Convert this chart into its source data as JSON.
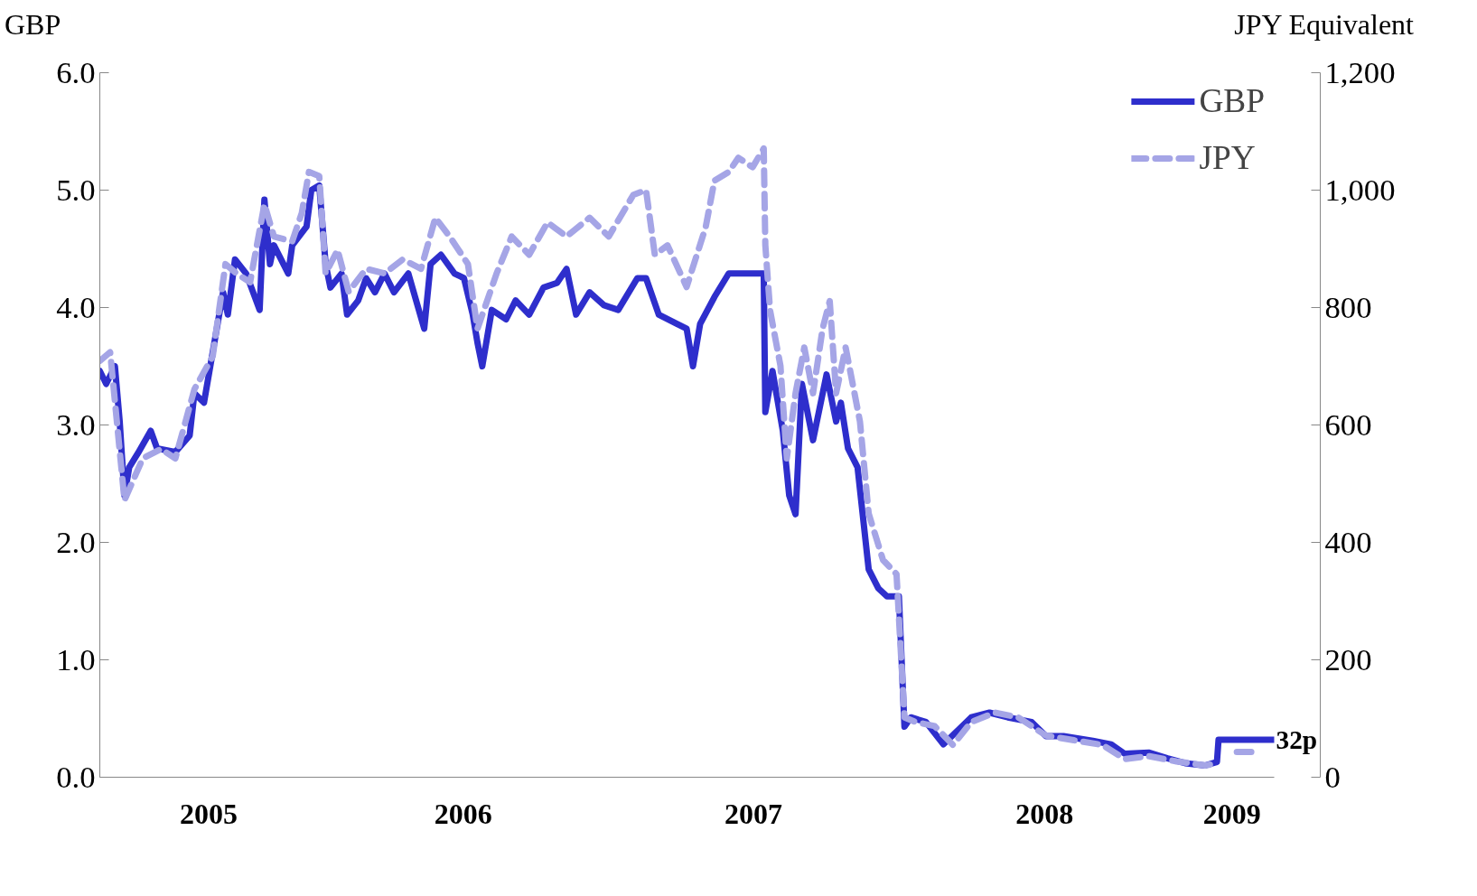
{
  "chart_data": {
    "type": "line",
    "ylabel": "GBP",
    "y2label": "JPY Equivalent",
    "xlim": [
      "2005-04-01",
      "2009-04-17"
    ],
    "xticks": [
      {
        "value": "2005-08-16",
        "label": "2005"
      },
      {
        "value": "2006-07-02",
        "label": "2006"
      },
      {
        "value": "2007-07-02",
        "label": "2007"
      },
      {
        "value": "2008-07-02",
        "label": "2008"
      },
      {
        "value": "2009-02-23",
        "label": "2009"
      }
    ],
    "ylim": [
      0,
      6
    ],
    "yticks": [
      {
        "value": 0,
        "label": "0.0"
      },
      {
        "value": 1,
        "label": "1.0"
      },
      {
        "value": 2,
        "label": "2.0"
      },
      {
        "value": 3,
        "label": "3.0"
      },
      {
        "value": 4,
        "label": "4.0"
      },
      {
        "value": 5,
        "label": "5.0"
      },
      {
        "value": 6,
        "label": "6.0"
      }
    ],
    "y2lim": [
      0,
      1200
    ],
    "y2ticks": [
      0,
      200,
      400,
      600,
      800,
      {
        "value": 1000,
        "label": "1,000"
      },
      {
        "value": 1200,
        "label": "1,200"
      }
    ],
    "grid": false,
    "legend": "top right",
    "annotations": [
      {
        "text": "32p",
        "x": "2009-04-17",
        "y": 0.32
      }
    ],
    "series": [
      {
        "name": "GBP",
        "color": "#2e2ecc",
        "line_style": "solid",
        "x": [
          "2005-04-01",
          "2005-04-09",
          "2005-04-20",
          "2005-04-26",
          "2005-05-02",
          "2005-05-08",
          "2005-05-19",
          "2005-06-04",
          "2005-06-12",
          "2005-07-05",
          "2005-07-23",
          "2005-07-29",
          "2005-08-10",
          "2005-08-21",
          "2005-09-03",
          "2005-09-09",
          "2005-09-18",
          "2005-10-02",
          "2005-10-19",
          "2005-10-25",
          "2005-11-01",
          "2005-11-06",
          "2005-11-24",
          "2005-11-29",
          "2005-12-17",
          "2005-12-23",
          "2006-01-02",
          "2006-01-10",
          "2006-01-16",
          "2006-01-30",
          "2006-02-06",
          "2006-02-20",
          "2006-03-02",
          "2006-03-13",
          "2006-03-25",
          "2006-04-06",
          "2006-04-24",
          "2006-05-14",
          "2006-05-22",
          "2006-06-04",
          "2006-06-21",
          "2006-07-03",
          "2006-07-14",
          "2006-07-20",
          "2006-07-26",
          "2006-08-07",
          "2006-08-25",
          "2006-09-06",
          "2006-09-23",
          "2006-10-11",
          "2006-10-28",
          "2006-11-09",
          "2006-11-21",
          "2006-12-08",
          "2006-12-26",
          "2007-01-13",
          "2007-02-06",
          "2007-02-17",
          "2007-03-05",
          "2007-03-28",
          "2007-04-09",
          "2007-04-17",
          "2007-04-26",
          "2007-05-14",
          "2007-06-01",
          "2007-06-19",
          "2007-07-06",
          "2007-07-15",
          "2007-07-17",
          "2007-07-26",
          "2007-08-08",
          "2007-08-16",
          "2007-08-24",
          "2007-09-01",
          "2007-09-15",
          "2007-10-02",
          "2007-10-14",
          "2007-10-20",
          "2007-10-29",
          "2007-11-10",
          "2007-11-24",
          "2007-12-06",
          "2007-12-17",
          "2008-01-01",
          "2008-01-08",
          "2008-01-16",
          "2008-02-04",
          "2008-02-26",
          "2008-03-20",
          "2008-04-01",
          "2008-04-24",
          "2008-05-17",
          "2008-06-16",
          "2008-07-04",
          "2008-07-26",
          "2008-09-01",
          "2008-09-24",
          "2008-10-11",
          "2008-11-10",
          "2008-12-04",
          "2008-12-26",
          "2009-01-20",
          "2009-02-04",
          "2009-02-06",
          "2009-04-17"
        ],
        "values": [
          3.46,
          3.35,
          3.5,
          3.03,
          2.4,
          2.64,
          2.76,
          2.95,
          2.8,
          2.77,
          2.91,
          3.27,
          3.19,
          3.62,
          4.13,
          3.94,
          4.41,
          4.29,
          3.98,
          4.92,
          4.37,
          4.53,
          4.29,
          4.53,
          4.69,
          5.0,
          5.04,
          4.37,
          4.17,
          4.29,
          3.94,
          4.06,
          4.25,
          4.13,
          4.29,
          4.13,
          4.29,
          3.82,
          4.37,
          4.45,
          4.29,
          4.25,
          3.94,
          3.7,
          3.5,
          3.98,
          3.9,
          4.06,
          3.94,
          4.17,
          4.21,
          4.33,
          3.94,
          4.13,
          4.02,
          3.98,
          4.25,
          4.25,
          3.94,
          3.86,
          3.82,
          3.5,
          3.86,
          4.09,
          4.29,
          4.29,
          4.29,
          4.29,
          3.11,
          3.46,
          2.95,
          2.4,
          2.24,
          3.35,
          2.87,
          3.43,
          3.03,
          3.19,
          2.8,
          2.64,
          1.77,
          1.61,
          1.54,
          1.54,
          0.43,
          0.51,
          0.47,
          0.28,
          0.43,
          0.51,
          0.55,
          0.51,
          0.47,
          0.35,
          0.35,
          0.31,
          0.28,
          0.2,
          0.21,
          0.16,
          0.12,
          0.1,
          0.13,
          0.32,
          0.32
        ]
      },
      {
        "name": "JPY",
        "color": "#a5a5e6",
        "line_style": "dashed",
        "axis": "y2",
        "x": [
          "2005-04-01",
          "2005-04-14",
          "2005-05-02",
          "2005-05-25",
          "2005-06-17",
          "2005-07-05",
          "2005-07-29",
          "2005-08-21",
          "2005-09-06",
          "2005-09-20",
          "2005-10-07",
          "2005-10-25",
          "2005-11-06",
          "2005-11-29",
          "2005-12-11",
          "2005-12-20",
          "2006-01-02",
          "2006-01-10",
          "2006-01-25",
          "2006-02-08",
          "2006-03-02",
          "2006-03-25",
          "2006-04-17",
          "2006-05-10",
          "2006-05-28",
          "2006-06-15",
          "2006-07-08",
          "2006-07-20",
          "2006-08-13",
          "2006-09-01",
          "2006-09-23",
          "2006-10-16",
          "2006-11-09",
          "2006-12-08",
          "2007-01-01",
          "2007-02-01",
          "2007-02-17",
          "2007-02-28",
          "2007-03-16",
          "2007-04-09",
          "2007-05-03",
          "2007-05-14",
          "2007-06-01",
          "2007-06-13",
          "2007-07-01",
          "2007-07-15",
          "2007-07-17",
          "2007-07-23",
          "2007-08-05",
          "2007-08-13",
          "2007-08-24",
          "2007-09-04",
          "2007-09-15",
          "2007-09-27",
          "2007-10-06",
          "2007-10-14",
          "2007-10-26",
          "2007-11-13",
          "2007-11-24",
          "2007-12-12",
          "2007-12-29",
          "2008-01-08",
          "2008-01-22",
          "2008-02-15",
          "2008-03-09",
          "2008-04-01",
          "2008-05-01",
          "2008-05-30",
          "2008-07-04",
          "2008-08-08",
          "2008-09-13",
          "2008-10-11",
          "2008-11-10",
          "2008-12-15",
          "2009-01-20",
          "2009-02-04",
          "2009-02-15",
          "2009-03-01",
          "2009-03-24"
        ],
        "values": [
          709,
          724,
          472,
          543,
          559,
          543,
          661,
          717,
          874,
          858,
          843,
          976,
          921,
          913,
          961,
          1031,
          1024,
          858,
          898,
          827,
          866,
          858,
          882,
          866,
          953,
          921,
          874,
          764,
          858,
          921,
          890,
          945,
          921,
          953,
          921,
          992,
          1000,
          890,
          906,
          835,
          937,
          1016,
          1031,
          1055,
          1039,
          1071,
          906,
          795,
          701,
          543,
          654,
          732,
          654,
          764,
          811,
          654,
          732,
          606,
          449,
          370,
          346,
          102,
          94,
          87,
          55,
          94,
          110,
          102,
          71,
          63,
          55,
          31,
          36,
          27,
          20,
          24,
          null,
          43,
          43
        ]
      }
    ]
  }
}
